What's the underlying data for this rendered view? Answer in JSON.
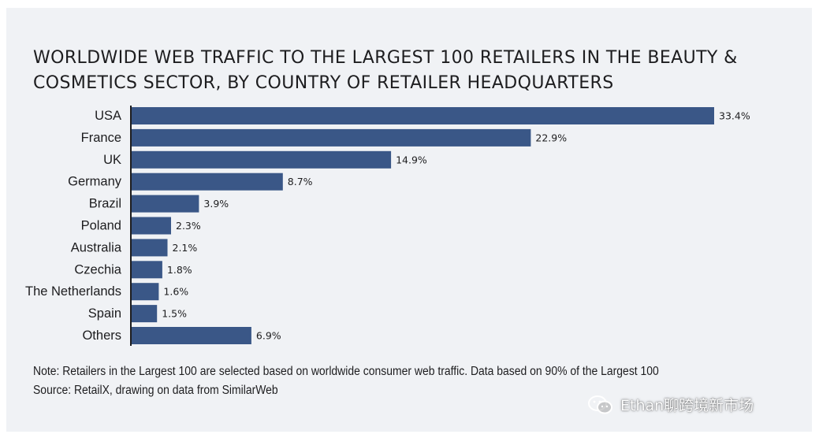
{
  "chart_data": {
    "type": "bar",
    "orientation": "horizontal",
    "title": "WORLDWIDE WEB TRAFFIC TO THE LARGEST 100 RETAILERS IN THE BEAUTY & COSMETICS SECTOR, BY COUNTRY OF RETAILER HEADQUARTERS",
    "categories": [
      "USA",
      "France",
      "UK",
      "Germany",
      "Brazil",
      "Poland",
      "Australia",
      "Czechia",
      "The Netherlands",
      "Spain",
      "Others"
    ],
    "values": [
      33.4,
      22.9,
      14.9,
      8.7,
      3.9,
      2.3,
      2.1,
      1.8,
      1.6,
      1.5,
      6.9
    ],
    "data_labels": [
      "33.4%",
      "22.9%",
      "14.9%",
      "8.7%",
      "3.9%",
      "2.3%",
      "2.1%",
      "1.8%",
      "1.6%",
      "1.5%",
      "6.9%"
    ],
    "unit": "%",
    "xlim": [
      0,
      33.4
    ],
    "grid": false,
    "legend": "none",
    "bar_color": "#3a5787"
  },
  "notes": {
    "note": "Note: Retailers in the Largest 100 are selected based on worldwide consumer web traffic. Data based on 90% of the Largest 100",
    "source": "Source: RetailX, drawing on data from SimilarWeb"
  },
  "watermark": {
    "text": "Ethan聊跨境新市场",
    "icon": "wechat-icon"
  },
  "colors": {
    "panel_background": "#f0f2f5",
    "text": "#1d1d1f",
    "bar": "#3a5787"
  }
}
